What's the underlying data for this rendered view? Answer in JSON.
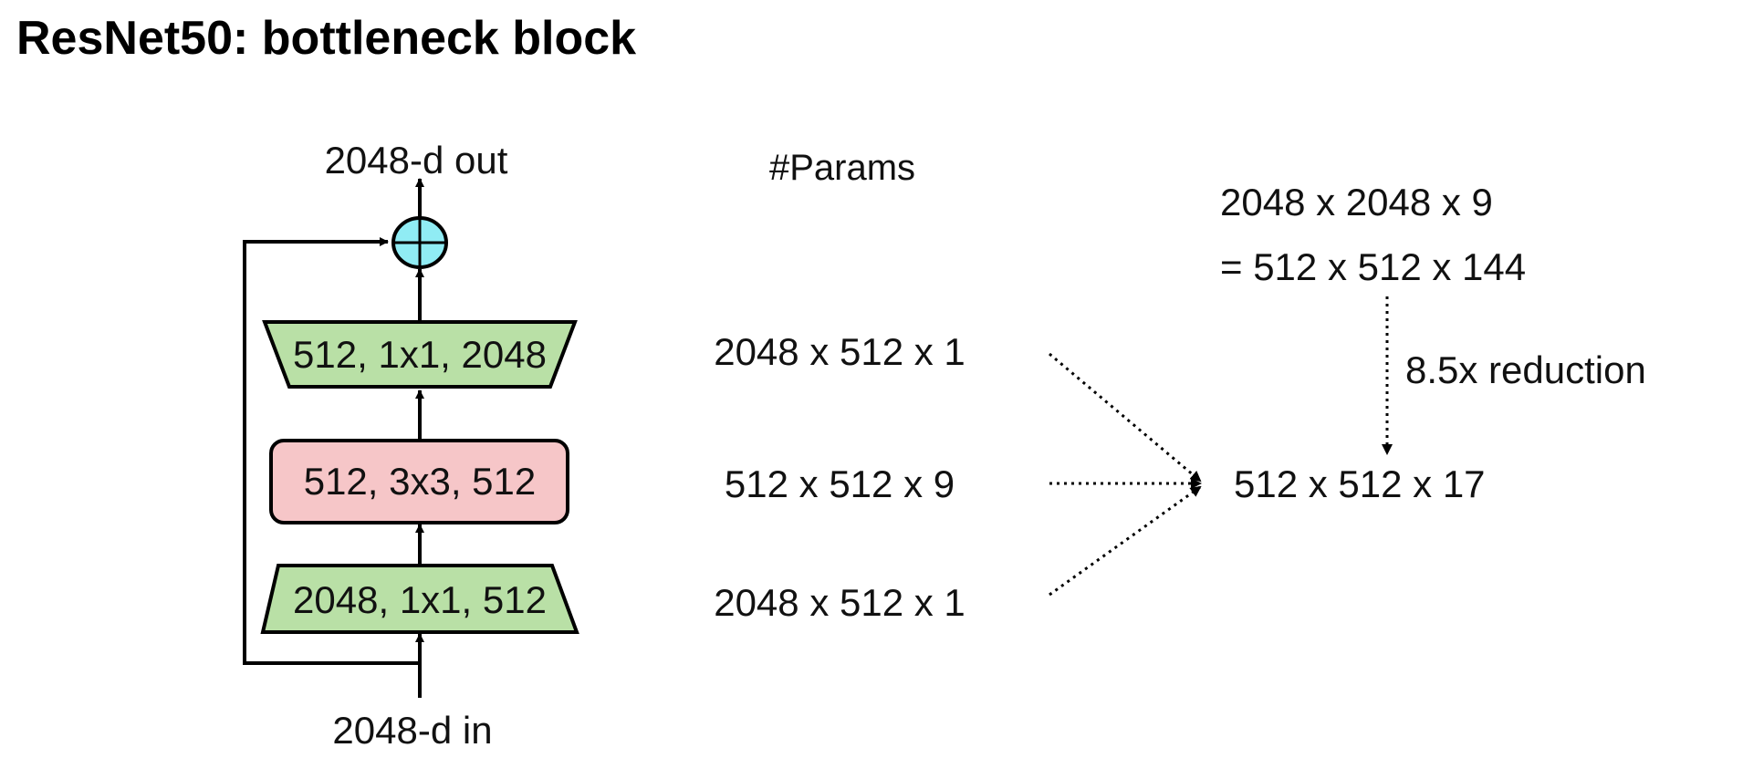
{
  "title": "ResNet50: bottleneck block",
  "block": {
    "output_label": "2048-d out",
    "input_label": "2048-d in",
    "layers": [
      {
        "label": "512, 1x1, 2048",
        "shape": "trapezoid-narrowing",
        "color": "#b9e0a6"
      },
      {
        "label": "512, 3x3, 512",
        "shape": "rounded-rect",
        "color": "#f6c6c8"
      },
      {
        "label": "2048, 1x1, 512",
        "shape": "trapezoid-widening",
        "color": "#b9e0a6"
      }
    ],
    "sum_node": {
      "icon": "circle-plus-icon",
      "color": "#90ecf4"
    }
  },
  "params": {
    "header": "#Params",
    "rows": [
      "2048 x 512 x 1",
      "512 x 512 x 9",
      "2048 x 512 x 1"
    ],
    "total": "512 x 512 x 17"
  },
  "comparison": {
    "line1": "2048 x 2048 x 9",
    "line2": "= 512 x 512 x 144",
    "reduction": "8.5x reduction"
  }
}
